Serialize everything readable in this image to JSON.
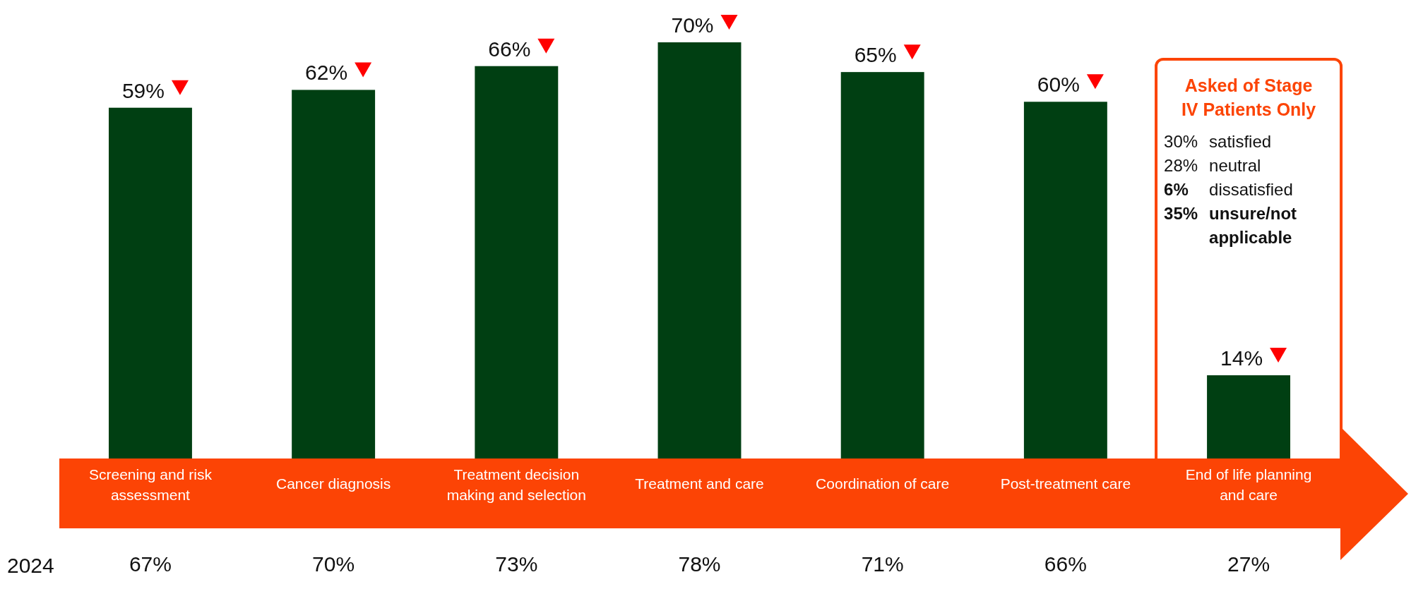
{
  "chart_data": {
    "type": "bar",
    "categories": [
      "Screening and risk assessment",
      "Cancer diagnosis",
      "Treatment decision making and selection",
      "Treatment and care",
      "Coordination of care",
      "Post-treatment care",
      "End of life planning and care"
    ],
    "values": [
      59,
      62,
      66,
      70,
      65,
      60,
      14
    ],
    "color": "#003f12",
    "value_labels": [
      "59%",
      "62%",
      "66%",
      "70%",
      "65%",
      "60%",
      "14%"
    ],
    "annotations": [
      "2024",
      "67%",
      "70%",
      "73%",
      "78%",
      "71%",
      "66%",
      "27%",
      "Asked of Stage IV Patients Only",
      "30% satisfied",
      "28% neutral",
      "6% dissatisfied",
      "35% unsure/not applicable"
    ]
  }
}
